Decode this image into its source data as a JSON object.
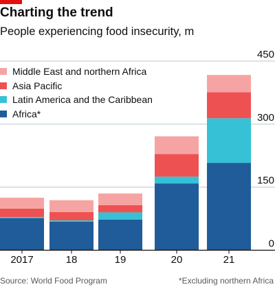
{
  "header": {
    "title": "Charting the trend",
    "subtitle": "People experiencing food insecurity, m"
  },
  "colors": {
    "accent": "#e3120b",
    "africa": "#1f5c99",
    "latin_america": "#36c1d6",
    "asia_pacific": "#ee5152",
    "mena": "#f6a4a3"
  },
  "legend": [
    {
      "label": "Middle East and northern Africa",
      "color": "#f6a4a3"
    },
    {
      "label": "Asia Pacific",
      "color": "#ee5152"
    },
    {
      "label": "Latin America and the Caribbean",
      "color": "#36c1d6"
    },
    {
      "label": "Africa*",
      "color": "#1f5c99"
    }
  ],
  "chart_data": {
    "type": "bar",
    "stacked": true,
    "categories": [
      "2017",
      "18",
      "19",
      "20",
      "21"
    ],
    "series": [
      {
        "name": "Africa*",
        "color": "#1f5c99",
        "values": [
          76,
          68,
          73,
          159,
          208
        ]
      },
      {
        "name": "Latin America and the Caribbean",
        "color": "#36c1d6",
        "values": [
          3,
          3,
          17,
          16,
          106
        ]
      },
      {
        "name": "Asia Pacific",
        "color": "#ee5152",
        "values": [
          20,
          20,
          17,
          54,
          62
        ]
      },
      {
        "name": "Middle East and northern Africa",
        "color": "#f6a4a3",
        "values": [
          26,
          28,
          28,
          42,
          41
        ]
      }
    ],
    "yticks": [
      0,
      150,
      300,
      450
    ],
    "ylim": [
      0,
      450
    ],
    "y_axis_side": "right",
    "grid": true
  },
  "footer": {
    "source": "Source: World Food Program",
    "note": "*Excluding northern Africa"
  }
}
